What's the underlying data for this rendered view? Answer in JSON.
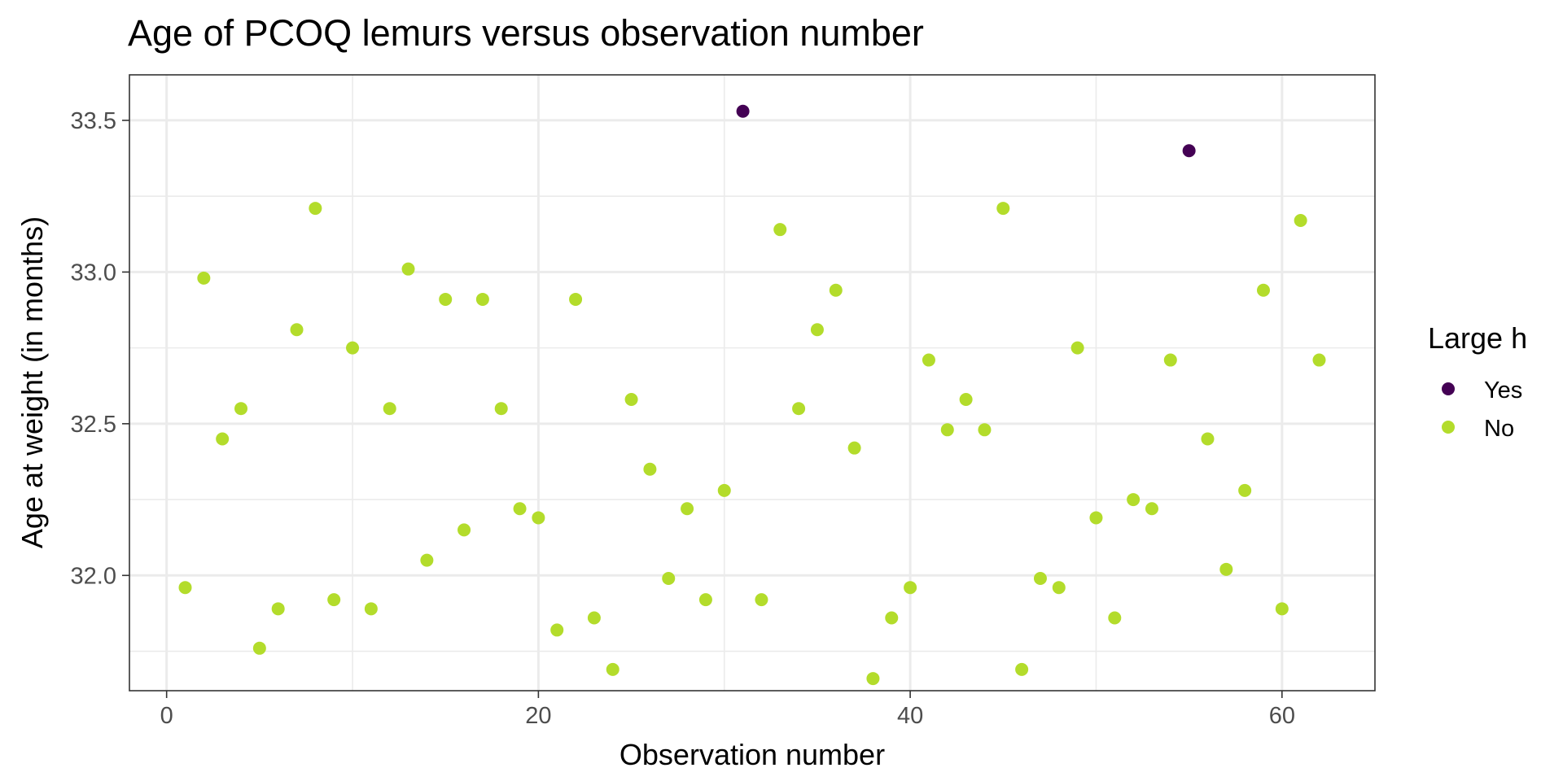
{
  "chart_data": {
    "type": "scatter",
    "title": "Age of PCOQ lemurs versus observation number",
    "xlabel": "Observation number",
    "ylabel": "Age at weight (in months)",
    "xlim": [
      -2,
      65
    ],
    "ylim": [
      31.62,
      33.65
    ],
    "x_ticks": [
      0,
      20,
      40,
      60
    ],
    "x_tick_labels": [
      "0",
      "20",
      "40",
      "60"
    ],
    "y_ticks": [
      32.0,
      32.5,
      33.0,
      33.5
    ],
    "y_tick_labels": [
      "32.0",
      "32.5",
      "33.0",
      "33.5"
    ],
    "grid": true,
    "legend": {
      "title": "Large h",
      "placement": "right",
      "entries": [
        {
          "label": "Yes",
          "color": "#440154"
        },
        {
          "label": "No",
          "color": "#b3dc2b"
        }
      ]
    },
    "colors": {
      "Yes": "#440154",
      "No": "#b3dc2b"
    },
    "points": [
      {
        "x": 1,
        "y": 31.96,
        "group": "No"
      },
      {
        "x": 2,
        "y": 32.98,
        "group": "No"
      },
      {
        "x": 3,
        "y": 32.45,
        "group": "No"
      },
      {
        "x": 4,
        "y": 32.55,
        "group": "No"
      },
      {
        "x": 5,
        "y": 31.76,
        "group": "No"
      },
      {
        "x": 6,
        "y": 31.89,
        "group": "No"
      },
      {
        "x": 7,
        "y": 32.81,
        "group": "No"
      },
      {
        "x": 8,
        "y": 33.21,
        "group": "No"
      },
      {
        "x": 9,
        "y": 31.92,
        "group": "No"
      },
      {
        "x": 10,
        "y": 32.75,
        "group": "No"
      },
      {
        "x": 11,
        "y": 31.89,
        "group": "No"
      },
      {
        "x": 12,
        "y": 32.55,
        "group": "No"
      },
      {
        "x": 13,
        "y": 33.01,
        "group": "No"
      },
      {
        "x": 14,
        "y": 32.05,
        "group": "No"
      },
      {
        "x": 15,
        "y": 32.91,
        "group": "No"
      },
      {
        "x": 16,
        "y": 32.15,
        "group": "No"
      },
      {
        "x": 17,
        "y": 32.91,
        "group": "No"
      },
      {
        "x": 18,
        "y": 32.55,
        "group": "No"
      },
      {
        "x": 19,
        "y": 32.22,
        "group": "No"
      },
      {
        "x": 20,
        "y": 32.19,
        "group": "No"
      },
      {
        "x": 21,
        "y": 31.82,
        "group": "No"
      },
      {
        "x": 22,
        "y": 32.91,
        "group": "No"
      },
      {
        "x": 23,
        "y": 31.86,
        "group": "No"
      },
      {
        "x": 24,
        "y": 31.69,
        "group": "No"
      },
      {
        "x": 25,
        "y": 32.58,
        "group": "No"
      },
      {
        "x": 26,
        "y": 32.35,
        "group": "No"
      },
      {
        "x": 27,
        "y": 31.99,
        "group": "No"
      },
      {
        "x": 28,
        "y": 32.22,
        "group": "No"
      },
      {
        "x": 29,
        "y": 31.92,
        "group": "No"
      },
      {
        "x": 30,
        "y": 32.28,
        "group": "No"
      },
      {
        "x": 31,
        "y": 33.53,
        "group": "Yes"
      },
      {
        "x": 32,
        "y": 31.92,
        "group": "No"
      },
      {
        "x": 33,
        "y": 33.14,
        "group": "No"
      },
      {
        "x": 34,
        "y": 32.55,
        "group": "No"
      },
      {
        "x": 35,
        "y": 32.81,
        "group": "No"
      },
      {
        "x": 36,
        "y": 32.94,
        "group": "No"
      },
      {
        "x": 37,
        "y": 32.42,
        "group": "No"
      },
      {
        "x": 38,
        "y": 31.66,
        "group": "No"
      },
      {
        "x": 39,
        "y": 31.86,
        "group": "No"
      },
      {
        "x": 40,
        "y": 31.96,
        "group": "No"
      },
      {
        "x": 41,
        "y": 32.71,
        "group": "No"
      },
      {
        "x": 42,
        "y": 32.48,
        "group": "No"
      },
      {
        "x": 43,
        "y": 32.58,
        "group": "No"
      },
      {
        "x": 44,
        "y": 32.48,
        "group": "No"
      },
      {
        "x": 45,
        "y": 33.21,
        "group": "No"
      },
      {
        "x": 46,
        "y": 31.69,
        "group": "No"
      },
      {
        "x": 47,
        "y": 31.99,
        "group": "No"
      },
      {
        "x": 48,
        "y": 31.96,
        "group": "No"
      },
      {
        "x": 49,
        "y": 32.75,
        "group": "No"
      },
      {
        "x": 50,
        "y": 32.19,
        "group": "No"
      },
      {
        "x": 51,
        "y": 31.86,
        "group": "No"
      },
      {
        "x": 52,
        "y": 32.25,
        "group": "No"
      },
      {
        "x": 53,
        "y": 32.22,
        "group": "No"
      },
      {
        "x": 54,
        "y": 32.71,
        "group": "No"
      },
      {
        "x": 55,
        "y": 33.4,
        "group": "Yes"
      },
      {
        "x": 56,
        "y": 32.45,
        "group": "No"
      },
      {
        "x": 57,
        "y": 32.02,
        "group": "No"
      },
      {
        "x": 58,
        "y": 32.28,
        "group": "No"
      },
      {
        "x": 59,
        "y": 32.94,
        "group": "No"
      },
      {
        "x": 60,
        "y": 31.89,
        "group": "No"
      },
      {
        "x": 61,
        "y": 33.17,
        "group": "No"
      },
      {
        "x": 62,
        "y": 32.71,
        "group": "No"
      }
    ]
  }
}
